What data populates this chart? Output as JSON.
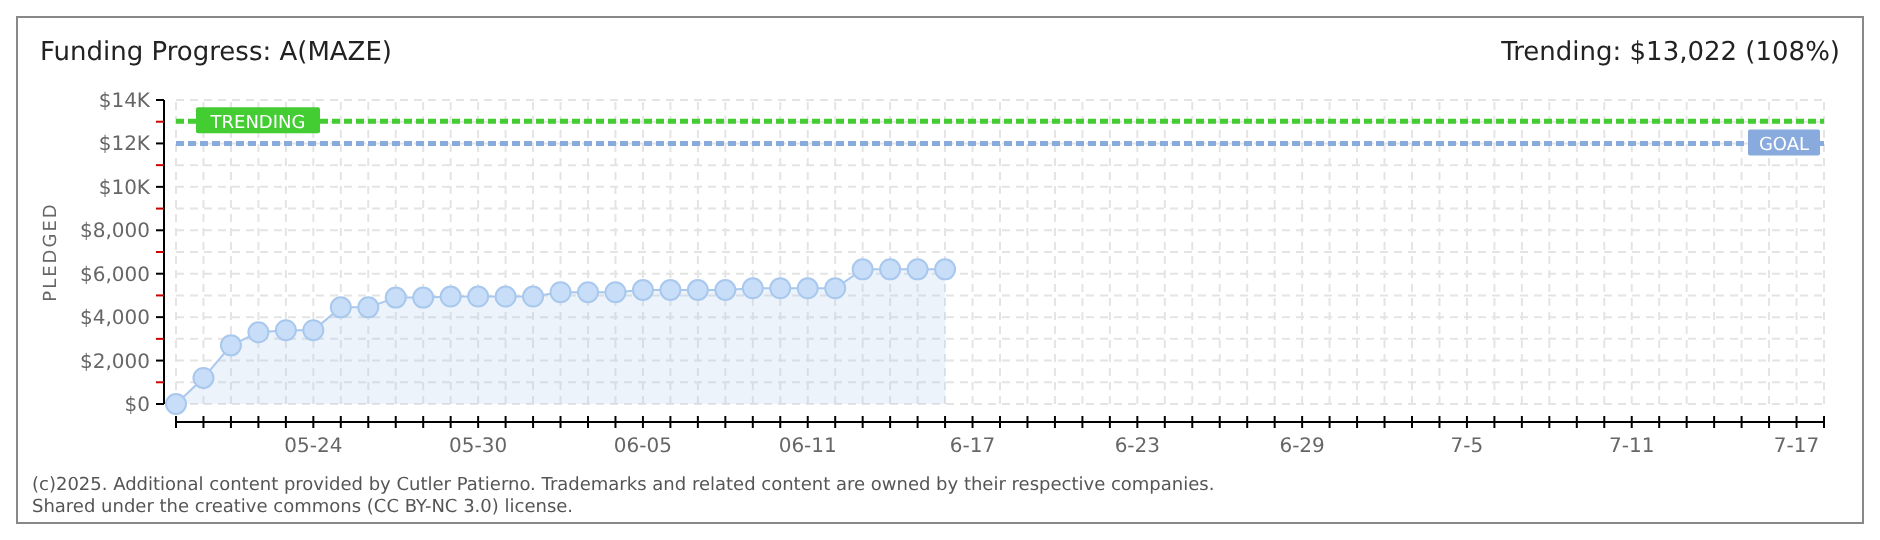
{
  "chart_data": {
    "type": "area",
    "title": "Funding Progress: A(MAZE)",
    "subtitle": "Trending: $13,022 (108%)",
    "ylabel": "PLEDGED",
    "x": [
      "2025-05-19",
      "2025-05-20",
      "2025-05-21",
      "2025-05-22",
      "2025-05-23",
      "2025-05-24",
      "2025-05-25",
      "2025-05-26",
      "2025-05-27",
      "2025-05-28",
      "2025-05-29",
      "2025-05-30",
      "2025-05-31",
      "2025-06-01",
      "2025-06-02",
      "2025-06-03",
      "2025-06-04",
      "2025-06-05",
      "2025-06-06",
      "2025-06-07",
      "2025-06-08",
      "2025-06-09",
      "2025-06-10",
      "2025-06-11",
      "2025-06-12",
      "2025-06-13",
      "2025-06-14",
      "2025-06-15",
      "2025-06-16"
    ],
    "series": [
      {
        "color": "#a9c8ee",
        "values": [
          0,
          1200,
          2700,
          3300,
          3400,
          3400,
          4450,
          4450,
          4900,
          4900,
          4950,
          4950,
          4950,
          4950,
          5150,
          5150,
          5150,
          5250,
          5250,
          5250,
          5250,
          5330,
          5330,
          5330,
          5330,
          6200,
          6200,
          6200,
          6200
        ]
      }
    ],
    "marker": "circle",
    "line_style": "solid",
    "grid": true,
    "xlim": [
      "2025-05-19",
      "2025-07-18"
    ],
    "xticks": [
      {
        "value": "2025-05-19",
        "label": null
      },
      {
        "value": "2025-05-20",
        "label": null
      },
      {
        "value": "2025-05-21",
        "label": null
      },
      {
        "value": "2025-05-22",
        "label": null
      },
      {
        "value": "2025-05-23",
        "label": null
      },
      {
        "value": "2025-05-24",
        "label": "05-24"
      },
      {
        "value": "2025-05-25",
        "label": null
      },
      {
        "value": "2025-05-26",
        "label": null
      },
      {
        "value": "2025-05-27",
        "label": null
      },
      {
        "value": "2025-05-28",
        "label": null
      },
      {
        "value": "2025-05-29",
        "label": null
      },
      {
        "value": "2025-05-30",
        "label": "05-30"
      },
      {
        "value": "2025-05-31",
        "label": null
      },
      {
        "value": "2025-06-01",
        "label": null
      },
      {
        "value": "2025-06-02",
        "label": null
      },
      {
        "value": "2025-06-03",
        "label": null
      },
      {
        "value": "2025-06-04",
        "label": null
      },
      {
        "value": "2025-06-05",
        "label": "06-05"
      },
      {
        "value": "2025-06-06",
        "label": null
      },
      {
        "value": "2025-06-07",
        "label": null
      },
      {
        "value": "2025-06-08",
        "label": null
      },
      {
        "value": "2025-06-09",
        "label": null
      },
      {
        "value": "2025-06-10",
        "label": null
      },
      {
        "value": "2025-06-11",
        "label": "06-11"
      },
      {
        "value": "2025-06-12",
        "label": null
      },
      {
        "value": "2025-06-13",
        "label": null
      },
      {
        "value": "2025-06-14",
        "label": null
      },
      {
        "value": "2025-06-15",
        "label": null
      },
      {
        "value": "2025-06-16",
        "label": null
      },
      {
        "value": "2025-06-17",
        "label": "6-17"
      },
      {
        "value": "2025-06-18",
        "label": null
      },
      {
        "value": "2025-06-19",
        "label": null
      },
      {
        "value": "2025-06-20",
        "label": null
      },
      {
        "value": "2025-06-21",
        "label": null
      },
      {
        "value": "2025-06-22",
        "label": null
      },
      {
        "value": "2025-06-23",
        "label": "6-23"
      },
      {
        "value": "2025-06-24",
        "label": null
      },
      {
        "value": "2025-06-25",
        "label": null
      },
      {
        "value": "2025-06-26",
        "label": null
      },
      {
        "value": "2025-06-27",
        "label": null
      },
      {
        "value": "2025-06-28",
        "label": null
      },
      {
        "value": "2025-06-29",
        "label": "6-29"
      },
      {
        "value": "2025-06-30",
        "label": null
      },
      {
        "value": "2025-07-01",
        "label": null
      },
      {
        "value": "2025-07-02",
        "label": null
      },
      {
        "value": "2025-07-03",
        "label": null
      },
      {
        "value": "2025-07-04",
        "label": null
      },
      {
        "value": "2025-07-05",
        "label": "7-5"
      },
      {
        "value": "2025-07-06",
        "label": null
      },
      {
        "value": "2025-07-07",
        "label": null
      },
      {
        "value": "2025-07-08",
        "label": null
      },
      {
        "value": "2025-07-09",
        "label": null
      },
      {
        "value": "2025-07-10",
        "label": null
      },
      {
        "value": "2025-07-11",
        "label": "7-11"
      },
      {
        "value": "2025-07-12",
        "label": null
      },
      {
        "value": "2025-07-13",
        "label": null
      },
      {
        "value": "2025-07-14",
        "label": null
      },
      {
        "value": "2025-07-15",
        "label": null
      },
      {
        "value": "2025-07-16",
        "label": null
      },
      {
        "value": "2025-07-17",
        "label": "7-17"
      },
      {
        "value": "2025-07-18",
        "label": null
      }
    ],
    "ylim": [
      0,
      14000
    ],
    "yticks": [
      {
        "value": 0,
        "label": "$0"
      },
      {
        "value": 1000,
        "label": null
      },
      {
        "value": 2000,
        "label": "$2,000"
      },
      {
        "value": 3000,
        "label": null
      },
      {
        "value": 4000,
        "label": "$4,000"
      },
      {
        "value": 5000,
        "label": null
      },
      {
        "value": 6000,
        "label": "$6,000"
      },
      {
        "value": 7000,
        "label": null
      },
      {
        "value": 8000,
        "label": "$8,000"
      },
      {
        "value": 9000,
        "label": null
      },
      {
        "value": 10000,
        "label": "$10K"
      },
      {
        "value": 11000,
        "label": null
      },
      {
        "value": 12000,
        "label": "$12K"
      },
      {
        "value": 13000,
        "label": null
      },
      {
        "value": 14000,
        "label": "$14K"
      }
    ],
    "ref_lines": [
      {
        "axis": "y",
        "value": 13022,
        "label": "TRENDING",
        "color": "#44cc33",
        "line_style": "dashed"
      },
      {
        "axis": "y",
        "value": 12000,
        "label": "GOAL",
        "color": "#88aadd",
        "line_style": "dashed"
      }
    ],
    "annotations": [
      "(c)2025. Additional content provided by Cutler Patierno. Trademarks and related content are owned by their respective companies.",
      "Shared under the creative commons (CC BY-NC 3.0) license."
    ]
  }
}
